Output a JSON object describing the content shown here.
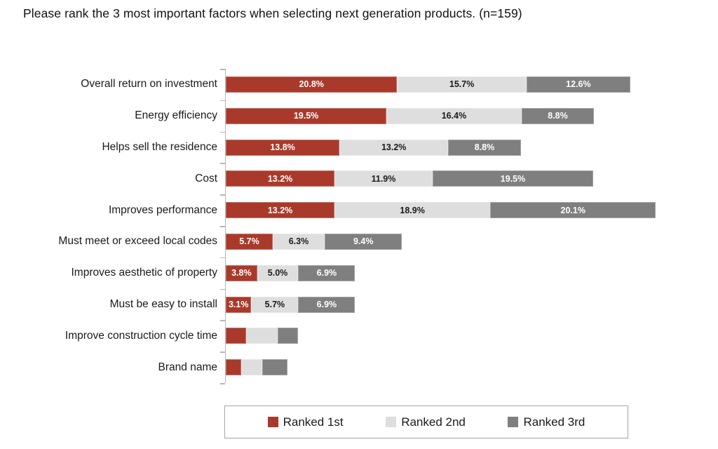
{
  "title": "Please rank the 3 most important factors when selecting next generation products. (n=159)",
  "chart_data": {
    "type": "bar",
    "orientation": "horizontal",
    "stacked": true,
    "unit": "%",
    "title": "Please rank the 3 most important factors when selecting next generation products. (n=159)",
    "xlabel": "",
    "ylabel": "",
    "xlim": [
      0,
      60
    ],
    "grid": false,
    "axis_color": "#b7b7b7",
    "categories": [
      "Overall return on investment",
      "Energy efficiency",
      "Helps sell the residence",
      "Cost",
      "Improves performance",
      "Must meet or exceed local codes",
      "Improves aesthetic of property",
      "Must be easy to install",
      "Improve construction cycle time",
      "Brand name"
    ],
    "series": [
      {
        "name": "Ranked 1st",
        "color": "#a93a2b",
        "label_text_color": "#ffffff",
        "values": [
          20.8,
          19.5,
          13.8,
          13.2,
          13.2,
          5.7,
          3.8,
          3.1,
          2.5,
          1.9
        ]
      },
      {
        "name": "Ranked 2nd",
        "color": "#dedede",
        "label_text_color": "#1a1a1a",
        "values": [
          15.7,
          16.4,
          13.2,
          11.9,
          18.9,
          6.3,
          5.0,
          5.7,
          3.8,
          2.5
        ]
      },
      {
        "name": "Ranked 3rd",
        "color": "#7f7f7f",
        "label_text_color": "#ffffff",
        "values": [
          12.6,
          8.8,
          8.8,
          19.5,
          20.1,
          9.4,
          6.9,
          6.9,
          2.5,
          3.1
        ]
      }
    ],
    "data_labels": {
      "format": "one_decimal_percent",
      "visible_rows": [
        true,
        true,
        true,
        true,
        true,
        true,
        true,
        true,
        false,
        false
      ]
    },
    "legend": {
      "position": "bottom",
      "entries": [
        "Ranked 1st",
        "Ranked 2nd",
        "Ranked 3rd"
      ]
    }
  }
}
